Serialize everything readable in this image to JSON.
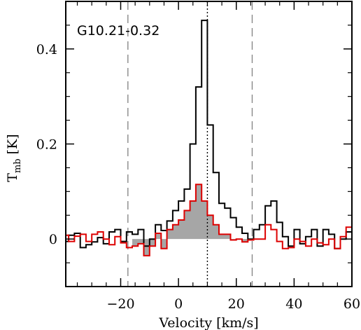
{
  "chart_data": {
    "type": "line",
    "title": "G10.21-0.32",
    "xlabel": "Velocity [km/s]",
    "ylabel_main": "T",
    "ylabel_sub": "mb",
    "ylabel_unit": "[K]",
    "xlim": [
      -39,
      60
    ],
    "ylim": [
      -0.1,
      0.5
    ],
    "x_ticks": [
      -20,
      0,
      20,
      40,
      60
    ],
    "x_tick_labels": [
      "−20",
      "0",
      "20",
      "40",
      "60"
    ],
    "y_ticks": [
      0,
      0.2,
      0.4
    ],
    "y_tick_labels": [
      "0",
      "0.2",
      "0.4"
    ],
    "grid": false,
    "legend": "none",
    "vlines": [
      {
        "x": -17.5,
        "style": "dashed",
        "color": "#888888"
      },
      {
        "x": 10.0,
        "style": "dotted",
        "color": "#000000"
      },
      {
        "x": 25.5,
        "style": "dashed",
        "color": "#888888"
      }
    ],
    "series": [
      {
        "style": "step",
        "color": "#000000",
        "x": [
          -39,
          -37,
          -35,
          -33,
          -31,
          -29,
          -27,
          -25,
          -23,
          -21,
          -19,
          -17,
          -15,
          -13,
          -11,
          -9,
          -7,
          -5,
          -3,
          -1,
          1,
          3,
          5,
          7,
          9,
          11,
          13,
          15,
          17,
          19,
          21,
          23,
          25,
          27,
          29,
          31,
          33,
          35,
          37,
          39,
          41,
          43,
          45,
          47,
          49,
          51,
          53,
          55,
          57,
          59
        ],
        "y": [
          -0.005,
          0.008,
          0.012,
          -0.018,
          -0.012,
          -0.006,
          0.003,
          -0.01,
          0.015,
          0.02,
          -0.005,
          0.015,
          0.01,
          0.02,
          -0.015,
          0.0,
          0.03,
          0.018,
          0.038,
          0.06,
          0.08,
          0.105,
          0.2,
          0.32,
          0.46,
          0.24,
          0.14,
          0.075,
          0.065,
          0.045,
          0.025,
          0.012,
          0.0,
          0.02,
          0.03,
          0.07,
          0.08,
          0.035,
          0.005,
          -0.015,
          0.02,
          -0.01,
          0.005,
          0.02,
          -0.015,
          0.02,
          0.01,
          -0.02,
          0.0,
          0.015
        ]
      },
      {
        "style": "step",
        "color": "#dd0000",
        "fill_color": "#a6a6a6",
        "x": [
          -39,
          -37,
          -35,
          -33,
          -31,
          -29,
          -27,
          -25,
          -23,
          -21,
          -19,
          -17,
          -15,
          -13,
          -11,
          -9,
          -7,
          -5,
          -3,
          -1,
          1,
          3,
          5,
          7,
          9,
          11,
          13,
          15,
          17,
          19,
          21,
          23,
          25,
          27,
          29,
          31,
          33,
          35,
          37,
          39,
          41,
          43,
          45,
          47,
          49,
          51,
          53,
          55,
          57,
          59
        ],
        "y": [
          0.008,
          -0.005,
          0.006,
          0.01,
          -0.005,
          0.01,
          0.015,
          0.0,
          -0.012,
          0.005,
          -0.008,
          -0.018,
          -0.015,
          -0.01,
          -0.035,
          -0.015,
          0.012,
          -0.02,
          0.02,
          0.03,
          0.04,
          0.06,
          0.08,
          0.115,
          0.08,
          0.05,
          0.03,
          0.01,
          0.01,
          -0.002,
          0.0,
          -0.006,
          -0.002,
          0.0,
          0.0,
          0.03,
          0.02,
          -0.005,
          -0.02,
          -0.018,
          0.0,
          -0.005,
          -0.015,
          0.0,
          -0.008,
          -0.012,
          0.0,
          -0.02,
          0.005,
          0.025
        ]
      }
    ]
  }
}
